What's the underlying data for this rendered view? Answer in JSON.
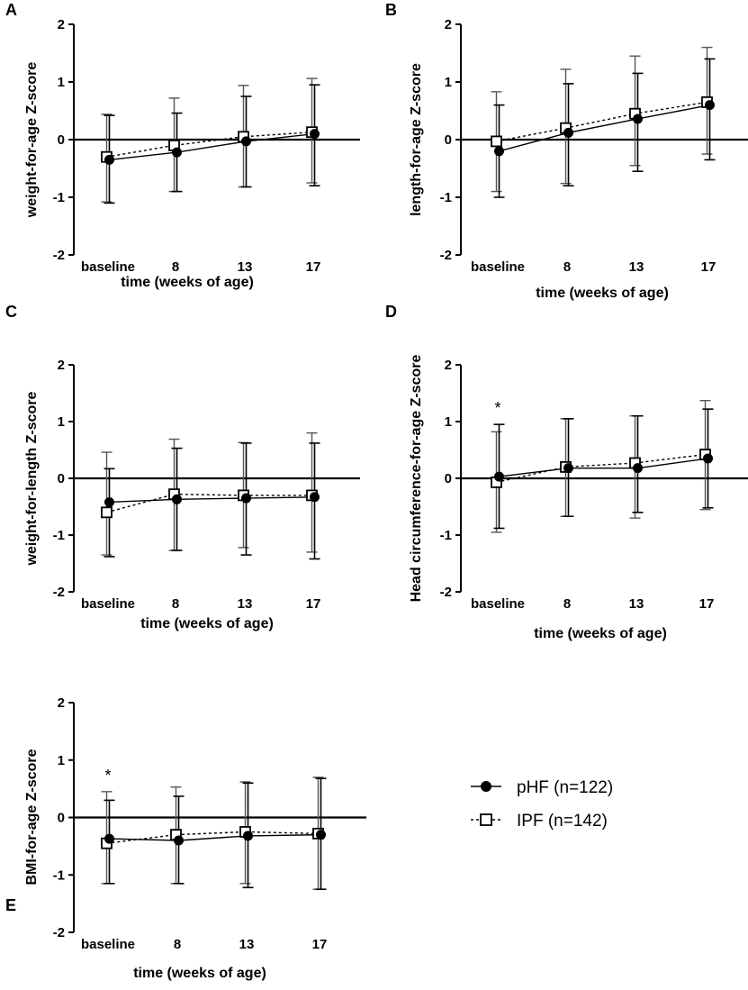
{
  "legend": {
    "series": [
      {
        "key": "phf",
        "label": "pHF (n=122)",
        "marker": "filled-circle"
      },
      {
        "key": "ipf",
        "label": "IPF (n=142)",
        "marker": "open-square"
      }
    ]
  },
  "chart_data": [
    {
      "id": "A",
      "type": "line",
      "panel_label": "A",
      "xlabel": "time (weeks of age)",
      "ylabel": "weight-for-age Z-score",
      "categories": [
        "baseline",
        "8",
        "13",
        "17"
      ],
      "ylim": [
        -2,
        2
      ],
      "yticks": [
        -2,
        -1,
        0,
        1,
        2
      ],
      "annotation": "",
      "series": [
        {
          "name": "pHF (n=122)",
          "key": "phf",
          "values": [
            -0.35,
            -0.22,
            -0.03,
            0.1
          ],
          "err_low": [
            -1.1,
            -0.9,
            -0.82,
            -0.8
          ],
          "err_high": [
            0.42,
            0.46,
            0.75,
            0.95
          ]
        },
        {
          "name": "IPF (n=142)",
          "key": "ipf",
          "values": [
            -0.3,
            -0.1,
            0.05,
            0.13
          ],
          "err_low": [
            -1.08,
            -0.9,
            -0.82,
            -0.75
          ],
          "err_high": [
            0.44,
            0.72,
            0.94,
            1.06
          ]
        }
      ]
    },
    {
      "id": "B",
      "type": "line",
      "panel_label": "B",
      "xlabel": "time (weeks of age)",
      "ylabel": "length-for-age Z-score",
      "categories": [
        "baseline",
        "8",
        "13",
        "17"
      ],
      "ylim": [
        -2,
        2
      ],
      "yticks": [
        -2,
        -1,
        0,
        1,
        2
      ],
      "annotation": "",
      "series": [
        {
          "name": "pHF (n=122)",
          "key": "phf",
          "values": [
            -0.2,
            0.12,
            0.36,
            0.6
          ],
          "err_low": [
            -1.0,
            -0.8,
            -0.55,
            -0.35
          ],
          "err_high": [
            0.6,
            0.97,
            1.15,
            1.4
          ]
        },
        {
          "name": "IPF (n=142)",
          "key": "ipf",
          "values": [
            -0.03,
            0.2,
            0.45,
            0.65
          ],
          "err_low": [
            -0.9,
            -0.76,
            -0.45,
            -0.25
          ],
          "err_high": [
            0.83,
            1.22,
            1.45,
            1.6
          ]
        }
      ]
    },
    {
      "id": "C",
      "type": "line",
      "panel_label": "C",
      "xlabel": "time (weeks of age)",
      "ylabel": "weight-for-length Z-score",
      "categories": [
        "baseline",
        "8",
        "13",
        "17"
      ],
      "ylim": [
        -2,
        2
      ],
      "yticks": [
        -2,
        -1,
        0,
        1,
        2
      ],
      "annotation": "",
      "series": [
        {
          "name": "pHF (n=122)",
          "key": "phf",
          "values": [
            -0.42,
            -0.37,
            -0.35,
            -0.33
          ],
          "err_low": [
            -1.38,
            -1.27,
            -1.35,
            -1.42
          ],
          "err_high": [
            0.17,
            0.53,
            0.62,
            0.62
          ]
        },
        {
          "name": "IPF (n=142)",
          "key": "ipf",
          "values": [
            -0.6,
            -0.28,
            -0.3,
            -0.3
          ],
          "err_low": [
            -1.35,
            -1.27,
            -1.22,
            -1.3
          ],
          "err_high": [
            0.46,
            0.69,
            0.63,
            0.8
          ]
        }
      ]
    },
    {
      "id": "D",
      "type": "line",
      "panel_label": "D",
      "xlabel": "time (weeks of age)",
      "ylabel": "Head circumference-for-age Z-score",
      "categories": [
        "baseline",
        "8",
        "13",
        "17"
      ],
      "ylim": [
        -2,
        2
      ],
      "yticks": [
        -2,
        -1,
        0,
        1,
        2
      ],
      "annotation": "*",
      "series": [
        {
          "name": "pHF (n=122)",
          "key": "phf",
          "values": [
            0.03,
            0.18,
            0.18,
            0.35
          ],
          "err_low": [
            -0.88,
            -0.67,
            -0.6,
            -0.52
          ],
          "err_high": [
            0.95,
            1.05,
            1.1,
            1.22
          ]
        },
        {
          "name": "IPF (n=142)",
          "key": "ipf",
          "values": [
            -0.07,
            0.2,
            0.27,
            0.42
          ],
          "err_low": [
            -0.95,
            -0.67,
            -0.7,
            -0.55
          ],
          "err_high": [
            0.82,
            1.05,
            1.1,
            1.37
          ]
        }
      ]
    },
    {
      "id": "E",
      "type": "line",
      "panel_label": "E",
      "xlabel": "time (weeks of age)",
      "ylabel": "BMI-for-age Z-score",
      "categories": [
        "baseline",
        "8",
        "13",
        "17"
      ],
      "ylim": [
        -2,
        2
      ],
      "yticks": [
        -2,
        -1,
        0,
        1,
        2
      ],
      "annotation": "*",
      "series": [
        {
          "name": "pHF (n=122)",
          "key": "phf",
          "values": [
            -0.37,
            -0.4,
            -0.32,
            -0.3
          ],
          "err_low": [
            -1.15,
            -1.15,
            -1.22,
            -1.25
          ],
          "err_high": [
            0.3,
            0.37,
            0.6,
            0.68
          ]
        },
        {
          "name": "IPF (n=142)",
          "key": "ipf",
          "values": [
            -0.45,
            -0.3,
            -0.25,
            -0.28
          ],
          "err_low": [
            -1.15,
            -1.15,
            -1.15,
            -1.25
          ],
          "err_high": [
            0.45,
            0.53,
            0.62,
            0.7
          ]
        }
      ]
    }
  ]
}
